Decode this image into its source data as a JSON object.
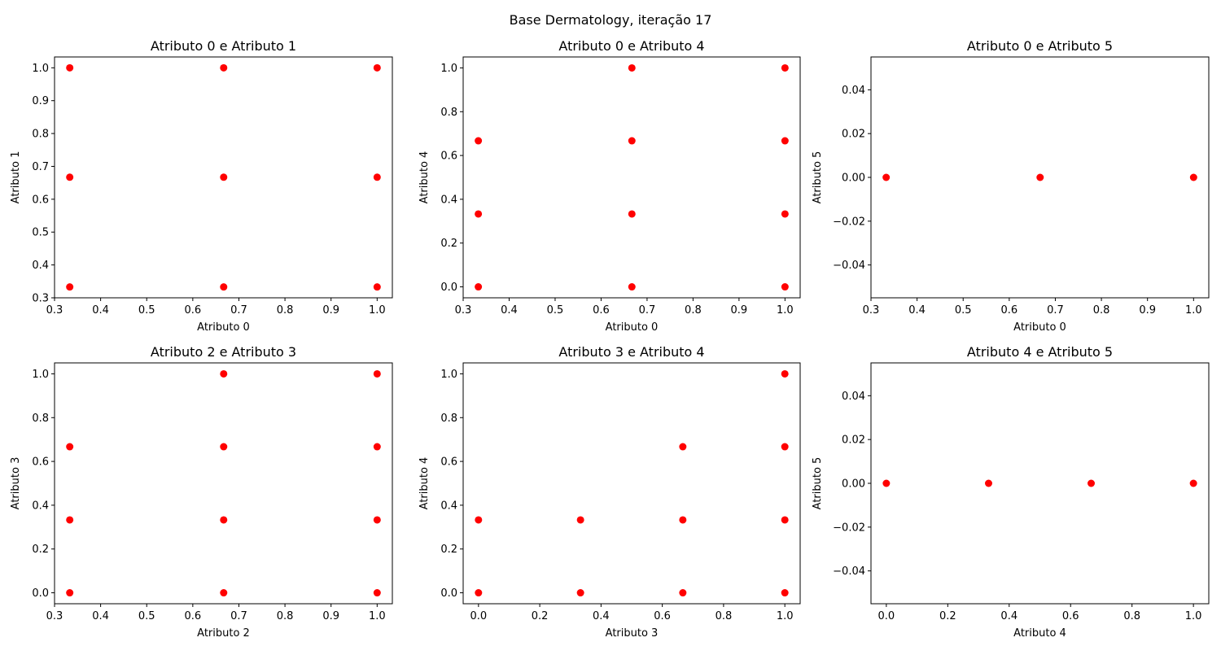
{
  "figure": {
    "suptitle": "Base Dermatology, iteração 17",
    "background": "#ffffff",
    "marker_color": "#ff0000"
  },
  "chart_data": [
    {
      "type": "scatter",
      "title": "Atributo 0 e Atributo 1",
      "xlabel": "Atributo 0",
      "ylabel": "Atributo 1",
      "xlim": [
        0.3,
        1.033
      ],
      "ylim": [
        0.3,
        1.033
      ],
      "xticks": [
        "0.3",
        "0.4",
        "0.5",
        "0.6",
        "0.7",
        "0.8",
        "0.9",
        "1.0"
      ],
      "yticks": [
        "0.3",
        "0.4",
        "0.5",
        "0.6",
        "0.7",
        "0.8",
        "0.9",
        "1.0"
      ],
      "points": [
        [
          0.333,
          1.0
        ],
        [
          0.667,
          1.0
        ],
        [
          1.0,
          1.0
        ],
        [
          0.333,
          0.667
        ],
        [
          0.667,
          0.667
        ],
        [
          1.0,
          0.667
        ],
        [
          0.333,
          0.333
        ],
        [
          0.667,
          0.333
        ],
        [
          1.0,
          0.333
        ]
      ]
    },
    {
      "type": "scatter",
      "title": "Atributo 0 e Atributo 4",
      "xlabel": "Atributo 0",
      "ylabel": "Atributo 4",
      "xlim": [
        0.3,
        1.033
      ],
      "ylim": [
        -0.05,
        1.05
      ],
      "xticks": [
        "0.3",
        "0.4",
        "0.5",
        "0.6",
        "0.7",
        "0.8",
        "0.9",
        "1.0"
      ],
      "yticks": [
        "0.0",
        "0.2",
        "0.4",
        "0.6",
        "0.8",
        "1.0"
      ],
      "points": [
        [
          0.667,
          1.0
        ],
        [
          1.0,
          1.0
        ],
        [
          0.333,
          0.667
        ],
        [
          0.667,
          0.667
        ],
        [
          1.0,
          0.667
        ],
        [
          0.333,
          0.333
        ],
        [
          0.667,
          0.333
        ],
        [
          1.0,
          0.333
        ],
        [
          0.333,
          0.0
        ],
        [
          0.667,
          0.0
        ],
        [
          1.0,
          0.0
        ]
      ]
    },
    {
      "type": "scatter",
      "title": "Atributo 0 e Atributo 5",
      "xlabel": "Atributo 0",
      "ylabel": "Atributo 5",
      "xlim": [
        0.3,
        1.033
      ],
      "ylim": [
        -0.055,
        0.055
      ],
      "xticks": [
        "0.3",
        "0.4",
        "0.5",
        "0.6",
        "0.7",
        "0.8",
        "0.9",
        "1.0"
      ],
      "yticks": [
        "−0.04",
        "−0.02",
        "0.00",
        "0.02",
        "0.04"
      ],
      "points": [
        [
          0.333,
          0.0
        ],
        [
          0.667,
          0.0
        ],
        [
          1.0,
          0.0
        ]
      ]
    },
    {
      "type": "scatter",
      "title": "Atributo 2 e Atributo 3",
      "xlabel": "Atributo 2",
      "ylabel": "Atributo 3",
      "xlim": [
        0.3,
        1.033
      ],
      "ylim": [
        -0.05,
        1.05
      ],
      "xticks": [
        "0.3",
        "0.4",
        "0.5",
        "0.6",
        "0.7",
        "0.8",
        "0.9",
        "1.0"
      ],
      "yticks": [
        "0.0",
        "0.2",
        "0.4",
        "0.6",
        "0.8",
        "1.0"
      ],
      "points": [
        [
          0.667,
          1.0
        ],
        [
          1.0,
          1.0
        ],
        [
          0.333,
          0.667
        ],
        [
          0.667,
          0.667
        ],
        [
          1.0,
          0.667
        ],
        [
          0.333,
          0.333
        ],
        [
          0.667,
          0.333
        ],
        [
          1.0,
          0.333
        ],
        [
          0.333,
          0.0
        ],
        [
          0.667,
          0.0
        ],
        [
          1.0,
          0.0
        ]
      ]
    },
    {
      "type": "scatter",
      "title": "Atributo 3 e Atributo 4",
      "xlabel": "Atributo 3",
      "ylabel": "Atributo 4",
      "xlim": [
        -0.05,
        1.05
      ],
      "ylim": [
        -0.05,
        1.05
      ],
      "xticks": [
        "0.0",
        "0.2",
        "0.4",
        "0.6",
        "0.8",
        "1.0"
      ],
      "yticks": [
        "0.0",
        "0.2",
        "0.4",
        "0.6",
        "0.8",
        "1.0"
      ],
      "points": [
        [
          1.0,
          1.0
        ],
        [
          0.667,
          0.667
        ],
        [
          1.0,
          0.667
        ],
        [
          0.0,
          0.333
        ],
        [
          0.333,
          0.333
        ],
        [
          0.667,
          0.333
        ],
        [
          1.0,
          0.333
        ],
        [
          0.0,
          0.0
        ],
        [
          0.333,
          0.0
        ],
        [
          0.667,
          0.0
        ],
        [
          1.0,
          0.0
        ]
      ]
    },
    {
      "type": "scatter",
      "title": "Atributo 4 e Atributo 5",
      "xlabel": "Atributo 4",
      "ylabel": "Atributo 5",
      "xlim": [
        -0.05,
        1.05
      ],
      "ylim": [
        -0.055,
        0.055
      ],
      "xticks": [
        "0.0",
        "0.2",
        "0.4",
        "0.6",
        "0.8",
        "1.0"
      ],
      "yticks": [
        "−0.04",
        "−0.02",
        "0.00",
        "0.02",
        "0.04"
      ],
      "points": [
        [
          0.0,
          0.0
        ],
        [
          0.333,
          0.0
        ],
        [
          0.667,
          0.0
        ],
        [
          1.0,
          0.0
        ]
      ]
    }
  ]
}
